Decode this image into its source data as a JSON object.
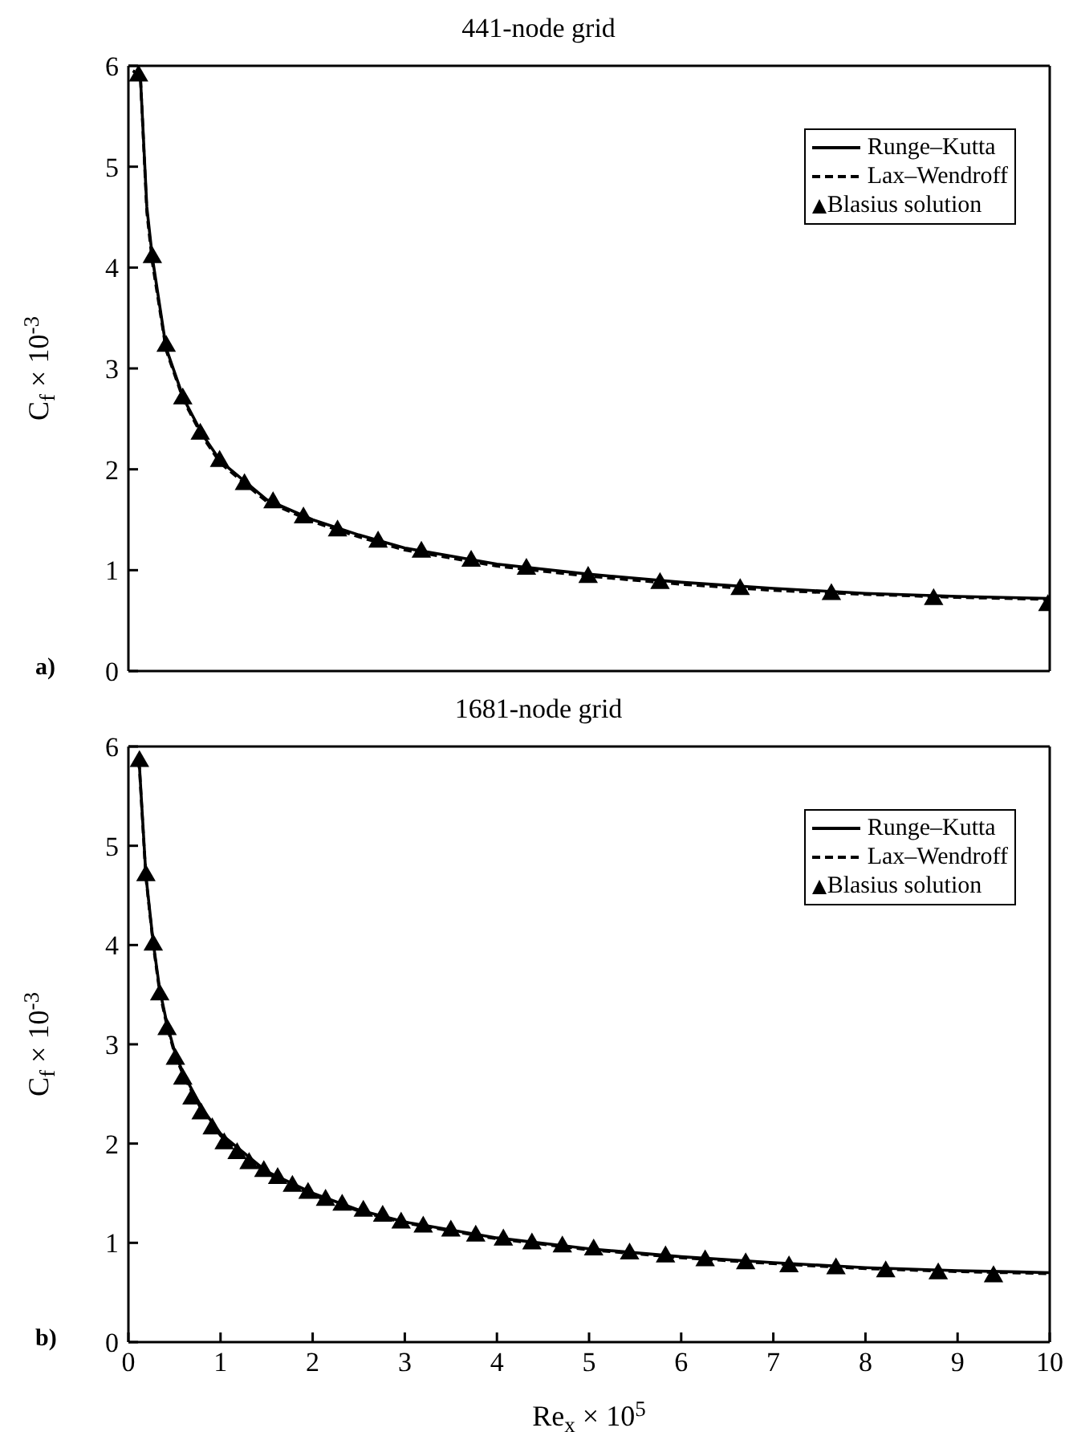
{
  "chart_data": [
    {
      "type": "line",
      "title": "441-node grid",
      "ylabel": "C$_{f}$ × 10$^{-3}$",
      "annotations": [
        "a)"
      ],
      "xlim": [
        0,
        10
      ],
      "xticks": [
        0,
        1,
        2,
        3,
        4,
        5,
        6,
        7,
        8,
        9,
        10
      ],
      "ylim": [
        0,
        6
      ],
      "yticks": [
        0,
        1,
        2,
        3,
        4,
        5,
        6
      ],
      "tick_labels": "y",
      "legend": "top right",
      "series": [
        {
          "name": "Runge–Kutta",
          "color": "#000000",
          "line_style": "solid",
          "marker": "none",
          "x": [
            0.05,
            0.13,
            0.2,
            0.26,
            0.41,
            0.6,
            0.8,
            1,
            1.5,
            2,
            2.5,
            3,
            4,
            5,
            6,
            7,
            8,
            9,
            10
          ],
          "values": [
            5.95,
            5.9,
            4.6,
            4.1,
            3.2,
            2.7,
            2.35,
            2.08,
            1.7,
            1.5,
            1.35,
            1.22,
            1.06,
            0.96,
            0.88,
            0.82,
            0.77,
            0.74,
            0.72
          ]
        },
        {
          "name": "Lax–Wendroff",
          "color": "#000000",
          "line_style": "dashed",
          "marker": "none",
          "x": [
            0.05,
            0.13,
            0.2,
            0.26,
            0.41,
            0.6,
            0.8,
            1,
            1.5,
            2,
            2.5,
            3,
            4,
            5,
            6,
            7,
            8,
            9,
            10
          ],
          "values": [
            5.95,
            5.9,
            4.55,
            4.05,
            3.18,
            2.68,
            2.33,
            2.06,
            1.68,
            1.48,
            1.33,
            1.2,
            1.04,
            0.94,
            0.86,
            0.8,
            0.76,
            0.73,
            0.71
          ]
        },
        {
          "name": "Blasius solution",
          "type": "scatter",
          "color": "#000000",
          "marker": "triangle",
          "x": [
            0.11,
            0.26,
            0.41,
            0.59,
            0.78,
            0.99,
            1.26,
            1.57,
            1.9,
            2.27,
            2.71,
            3.18,
            3.72,
            4.32,
            4.99,
            5.77,
            6.64,
            7.63,
            8.74,
            9.98
          ],
          "values": [
            5.9,
            4.1,
            3.22,
            2.7,
            2.35,
            2.08,
            1.85,
            1.67,
            1.52,
            1.39,
            1.28,
            1.18,
            1.09,
            1.01,
            0.93,
            0.87,
            0.81,
            0.76,
            0.71,
            0.65
          ]
        }
      ]
    },
    {
      "type": "line",
      "title": "1681-node grid",
      "xlabel": "Re$_{x}$ × 10$^{5}$",
      "ylabel": "C$_{f}$ × 10$^{-3}$",
      "annotations": [
        "b)"
      ],
      "xlim": [
        0,
        10
      ],
      "xticks": [
        0,
        1,
        2,
        3,
        4,
        5,
        6,
        7,
        8,
        9,
        10
      ],
      "ylim": [
        0,
        6
      ],
      "yticks": [
        0,
        1,
        2,
        3,
        4,
        5,
        6
      ],
      "legend": "top right",
      "series": [
        {
          "name": "Runge–Kutta",
          "color": "#000000",
          "line_style": "solid",
          "marker": "none",
          "x": [
            0.1,
            0.12,
            0.19,
            0.27,
            0.34,
            0.42,
            0.51,
            0.6,
            0.8,
            1,
            1.5,
            2,
            2.5,
            3,
            4,
            5,
            6,
            7,
            8,
            9,
            10
          ],
          "values": [
            5.85,
            5.8,
            4.7,
            4.02,
            3.55,
            3.2,
            2.9,
            2.7,
            2.35,
            2.1,
            1.72,
            1.5,
            1.33,
            1.21,
            1.05,
            0.94,
            0.86,
            0.8,
            0.75,
            0.72,
            0.7
          ]
        },
        {
          "name": "Lax–Wendroff",
          "color": "#000000",
          "line_style": "dashed",
          "marker": "none",
          "x": [
            0.1,
            0.12,
            0.19,
            0.27,
            0.34,
            0.42,
            0.51,
            0.6,
            0.8,
            1,
            1.5,
            2,
            2.5,
            3,
            4,
            5,
            6,
            7,
            8,
            9,
            10
          ],
          "values": [
            5.85,
            5.78,
            4.68,
            4.0,
            3.52,
            3.18,
            2.88,
            2.68,
            2.33,
            2.08,
            1.7,
            1.48,
            1.32,
            1.2,
            1.04,
            0.93,
            0.85,
            0.79,
            0.74,
            0.71,
            0.69
          ]
        },
        {
          "name": "Blasius solution",
          "type": "scatter",
          "color": "#000000",
          "marker": "triangle",
          "x": [
            0.12,
            0.19,
            0.27,
            0.34,
            0.42,
            0.51,
            0.59,
            0.69,
            0.79,
            0.91,
            1.04,
            1.18,
            1.31,
            1.47,
            1.62,
            1.78,
            1.95,
            2.14,
            2.32,
            2.55,
            2.76,
            2.96,
            3.2,
            3.5,
            3.77,
            4.07,
            4.38,
            4.71,
            5.05,
            5.44,
            5.83,
            6.26,
            6.7,
            7.17,
            7.68,
            8.22,
            8.79,
            9.39
          ],
          "values": [
            5.85,
            4.7,
            4.0,
            3.5,
            3.15,
            2.85,
            2.65,
            2.45,
            2.3,
            2.15,
            2.0,
            1.9,
            1.8,
            1.72,
            1.65,
            1.57,
            1.5,
            1.43,
            1.38,
            1.32,
            1.27,
            1.2,
            1.16,
            1.12,
            1.07,
            1.03,
            0.99,
            0.96,
            0.93,
            0.89,
            0.86,
            0.82,
            0.79,
            0.76,
            0.74,
            0.71,
            0.69,
            0.66
          ]
        }
      ]
    }
  ]
}
